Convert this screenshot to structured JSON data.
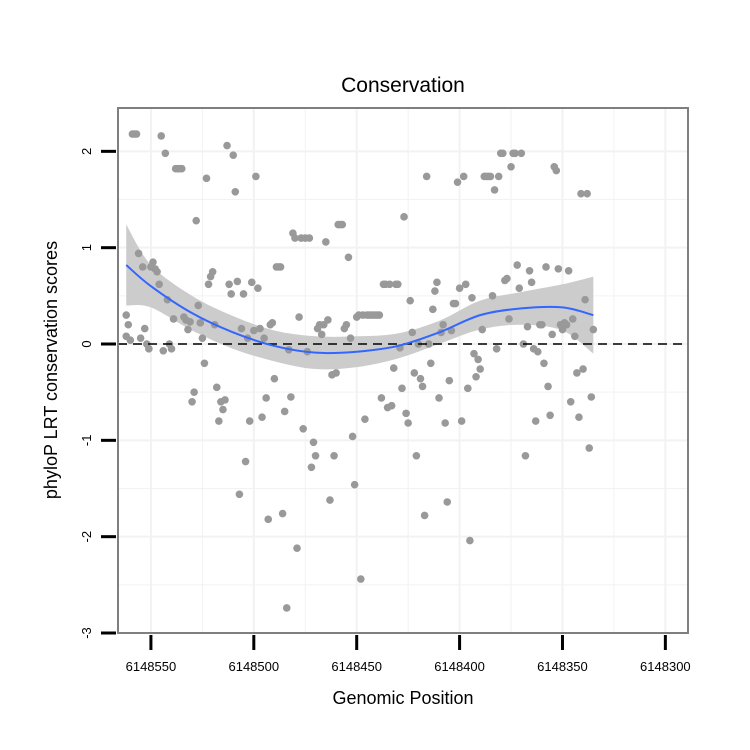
{
  "chart_data": {
    "type": "scatter",
    "title": "Conservation",
    "xlabel": "Genomic Position",
    "ylabel": "phyloP LRT conservation scores",
    "xlim": [
      6148566,
      6148289
    ],
    "ylim": [
      -3,
      2.45
    ],
    "x_reversed": true,
    "x_ticks": [
      6148550,
      6148500,
      6148450,
      6148400,
      6148350,
      6148300
    ],
    "x_tick_labels": [
      "6148550",
      "6148500",
      "6148450",
      "6148400",
      "6148350",
      "6148300"
    ],
    "y_ticks": [
      2,
      1,
      0,
      -1,
      -2,
      -3
    ],
    "y_tick_labels": [
      "2",
      "1",
      "0",
      "-1",
      "-2",
      "-3"
    ],
    "reference_line": {
      "y": 0,
      "style": "dashed"
    },
    "colors": {
      "points": "#999999",
      "smooth_line": "#3366FF",
      "confidence_band": "#cccccc",
      "panel_border": "#7f7f7f",
      "grid": "#f2f2f2"
    },
    "series": [
      {
        "name": "points",
        "values": [
          [
            6148562,
            0.3
          ],
          [
            6148562,
            0.08
          ],
          [
            6148561,
            0.2
          ],
          [
            6148560,
            0.04
          ],
          [
            6148559,
            2.18
          ],
          [
            6148558,
            2.18
          ],
          [
            6148557,
            2.18
          ],
          [
            6148556,
            0.94
          ],
          [
            6148555,
            0.06
          ],
          [
            6148554,
            0.8
          ],
          [
            6148553,
            0.16
          ],
          [
            6148552,
            0.0
          ],
          [
            6148551,
            -0.05
          ],
          [
            6148550,
            0.8
          ],
          [
            6148549,
            0.85
          ],
          [
            6148548,
            0.78
          ],
          [
            6148547,
            0.75
          ],
          [
            6148546,
            0.62
          ],
          [
            6148545,
            2.16
          ],
          [
            6148544,
            -0.07
          ],
          [
            6148543,
            1.98
          ],
          [
            6148542,
            0.46
          ],
          [
            6148541,
            0.0
          ],
          [
            6148540,
            -0.05
          ],
          [
            6148539,
            0.26
          ],
          [
            6148538,
            1.82
          ],
          [
            6148537,
            1.82
          ],
          [
            6148536,
            1.82
          ],
          [
            6148535,
            1.82
          ],
          [
            6148534,
            0.28
          ],
          [
            6148533,
            0.25
          ],
          [
            6148532,
            0.15
          ],
          [
            6148531,
            0.23
          ],
          [
            6148530,
            -0.6
          ],
          [
            6148529,
            -0.5
          ],
          [
            6148528,
            1.28
          ],
          [
            6148527,
            0.4
          ],
          [
            6148526,
            0.22
          ],
          [
            6148525,
            0.06
          ],
          [
            6148524,
            -0.2
          ],
          [
            6148523,
            1.72
          ],
          [
            6148522,
            0.62
          ],
          [
            6148521,
            0.7
          ],
          [
            6148520,
            0.75
          ],
          [
            6148519,
            0.2
          ],
          [
            6148518,
            -0.45
          ],
          [
            6148517,
            -0.8
          ],
          [
            6148516,
            -0.6
          ],
          [
            6148515,
            -0.68
          ],
          [
            6148514,
            -0.58
          ],
          [
            6148513,
            2.06
          ],
          [
            6148512,
            0.62
          ],
          [
            6148511,
            0.52
          ],
          [
            6148510,
            1.96
          ],
          [
            6148509,
            1.58
          ],
          [
            6148508,
            0.65
          ],
          [
            6148507,
            -1.56
          ],
          [
            6148506,
            0.16
          ],
          [
            6148505,
            0.52
          ],
          [
            6148504,
            -1.22
          ],
          [
            6148503,
            0.06
          ],
          [
            6148502,
            -0.8
          ],
          [
            6148501,
            0.64
          ],
          [
            6148500,
            0.14
          ],
          [
            6148499,
            1.74
          ],
          [
            6148498,
            0.58
          ],
          [
            6148497,
            0.16
          ],
          [
            6148496,
            -0.76
          ],
          [
            6148495,
            0.06
          ],
          [
            6148494,
            -0.56
          ],
          [
            6148493,
            -1.82
          ],
          [
            6148492,
            0.2
          ],
          [
            6148491,
            0.22
          ],
          [
            6148490,
            -0.36
          ],
          [
            6148489,
            0.8
          ],
          [
            6148488,
            0.8
          ],
          [
            6148487,
            0.8
          ],
          [
            6148486,
            -1.76
          ],
          [
            6148485,
            -0.7
          ],
          [
            6148484,
            -2.74
          ],
          [
            6148483,
            -0.06
          ],
          [
            6148482,
            -0.55
          ],
          [
            6148481,
            1.15
          ],
          [
            6148480,
            1.1
          ],
          [
            6148479,
            -2.12
          ],
          [
            6148478,
            0.28
          ],
          [
            6148477,
            1.1
          ],
          [
            6148476,
            -0.88
          ],
          [
            6148475,
            1.1
          ],
          [
            6148474,
            -0.08
          ],
          [
            6148473,
            1.1
          ],
          [
            6148472,
            -1.28
          ],
          [
            6148471,
            -1.02
          ],
          [
            6148470,
            -1.16
          ],
          [
            6148469,
            0.16
          ],
          [
            6148468,
            0.2
          ],
          [
            6148467,
            0.1
          ],
          [
            6148466,
            0.2
          ],
          [
            6148465,
            1.06
          ],
          [
            6148464,
            0.25
          ],
          [
            6148463,
            -1.62
          ],
          [
            6148462,
            -0.32
          ],
          [
            6148461,
            -1.16
          ],
          [
            6148460,
            -0.3
          ],
          [
            6148459,
            1.24
          ],
          [
            6148458,
            1.24
          ],
          [
            6148457,
            1.24
          ],
          [
            6148456,
            0.16
          ],
          [
            6148455,
            0.2
          ],
          [
            6148454,
            0.9
          ],
          [
            6148453,
            0.06
          ],
          [
            6148452,
            -0.96
          ],
          [
            6148451,
            -1.46
          ],
          [
            6148450,
            0.28
          ],
          [
            6148449,
            0.3
          ],
          [
            6148448,
            -2.44
          ],
          [
            6148447,
            0.3
          ],
          [
            6148446,
            -0.78
          ],
          [
            6148445,
            0.3
          ],
          [
            6148444,
            0.3
          ],
          [
            6148443,
            0.3
          ],
          [
            6148442,
            0.3
          ],
          [
            6148441,
            0.3
          ],
          [
            6148440,
            0.3
          ],
          [
            6148439,
            0.3
          ],
          [
            6148438,
            -0.56
          ],
          [
            6148437,
            0.62
          ],
          [
            6148436,
            0.62
          ],
          [
            6148435,
            -0.66
          ],
          [
            6148434,
            0.62
          ],
          [
            6148433,
            -0.64
          ],
          [
            6148432,
            -0.25
          ],
          [
            6148431,
            0.62
          ],
          [
            6148430,
            0.62
          ],
          [
            6148429,
            -0.04
          ],
          [
            6148428,
            -0.46
          ],
          [
            6148427,
            1.32
          ],
          [
            6148426,
            -0.72
          ],
          [
            6148425,
            -0.82
          ],
          [
            6148424,
            0.45
          ],
          [
            6148423,
            0.12
          ],
          [
            6148422,
            -0.3
          ],
          [
            6148421,
            -1.16
          ],
          [
            6148420,
            0.0
          ],
          [
            6148419,
            -0.36
          ],
          [
            6148418,
            -0.44
          ],
          [
            6148417,
            -1.78
          ],
          [
            6148416,
            1.74
          ],
          [
            6148415,
            0.0
          ],
          [
            6148414,
            -0.2
          ],
          [
            6148413,
            0.36
          ],
          [
            6148412,
            0.55
          ],
          [
            6148411,
            0.64
          ],
          [
            6148410,
            -0.56
          ],
          [
            6148409,
            0.12
          ],
          [
            6148408,
            0.2
          ],
          [
            6148407,
            -0.82
          ],
          [
            6148406,
            -1.64
          ],
          [
            6148405,
            -0.38
          ],
          [
            6148404,
            0.14
          ],
          [
            6148403,
            0.42
          ],
          [
            6148402,
            0.42
          ],
          [
            6148401,
            1.68
          ],
          [
            6148400,
            0.58
          ],
          [
            6148399,
            -0.8
          ],
          [
            6148398,
            1.74
          ],
          [
            6148397,
            0.62
          ],
          [
            6148396,
            -0.46
          ],
          [
            6148395,
            -2.04
          ],
          [
            6148394,
            0.48
          ],
          [
            6148393,
            -0.1
          ],
          [
            6148392,
            -0.34
          ],
          [
            6148391,
            -0.16
          ],
          [
            6148390,
            -0.26
          ],
          [
            6148389,
            0.15
          ],
          [
            6148388,
            1.74
          ],
          [
            6148387,
            1.74
          ],
          [
            6148386,
            1.74
          ],
          [
            6148385,
            1.74
          ],
          [
            6148384,
            0.5
          ],
          [
            6148383,
            1.6
          ],
          [
            6148382,
            -0.05
          ],
          [
            6148381,
            1.74
          ],
          [
            6148380,
            1.98
          ],
          [
            6148379,
            1.98
          ],
          [
            6148378,
            0.66
          ],
          [
            6148377,
            0.68
          ],
          [
            6148376,
            0.26
          ],
          [
            6148375,
            1.84
          ],
          [
            6148374,
            1.98
          ],
          [
            6148373,
            1.98
          ],
          [
            6148372,
            0.82
          ],
          [
            6148371,
            0.58
          ],
          [
            6148370,
            1.98
          ],
          [
            6148369,
            0.0
          ],
          [
            6148368,
            -1.16
          ],
          [
            6148367,
            0.18
          ],
          [
            6148366,
            0.76
          ],
          [
            6148365,
            0.64
          ],
          [
            6148364,
            -0.05
          ],
          [
            6148363,
            -0.8
          ],
          [
            6148362,
            -0.08
          ],
          [
            6148361,
            0.2
          ],
          [
            6148360,
            0.2
          ],
          [
            6148359,
            -0.2
          ],
          [
            6148358,
            0.8
          ],
          [
            6148357,
            -0.44
          ],
          [
            6148356,
            -0.74
          ],
          [
            6148355,
            0.1
          ],
          [
            6148354,
            1.84
          ],
          [
            6148353,
            1.8
          ],
          [
            6148352,
            0.78
          ],
          [
            6148351,
            0.2
          ],
          [
            6148350,
            0.15
          ],
          [
            6148349,
            0.22
          ],
          [
            6148348,
            0.2
          ],
          [
            6148347,
            0.76
          ],
          [
            6148346,
            -0.6
          ],
          [
            6148345,
            0.26
          ],
          [
            6148344,
            0.08
          ],
          [
            6148343,
            -0.3
          ],
          [
            6148342,
            -0.76
          ],
          [
            6148341,
            1.56
          ],
          [
            6148340,
            -0.26
          ],
          [
            6148339,
            0.46
          ],
          [
            6148338,
            1.56
          ],
          [
            6148337,
            -1.08
          ],
          [
            6148336,
            -0.55
          ],
          [
            6148335,
            0.15
          ]
        ]
      }
    ],
    "smooth": {
      "method": "loess",
      "x": [
        6148562,
        6148550,
        6148530,
        6148510,
        6148490,
        6148470,
        6148450,
        6148430,
        6148410,
        6148390,
        6148370,
        6148350,
        6148335
      ],
      "y": [
        0.82,
        0.6,
        0.32,
        0.12,
        -0.02,
        -0.09,
        -0.08,
        -0.02,
        0.12,
        0.3,
        0.37,
        0.38,
        0.3
      ],
      "lower": [
        0.4,
        0.38,
        0.14,
        -0.05,
        -0.18,
        -0.26,
        -0.24,
        -0.15,
        0.0,
        0.15,
        0.2,
        0.14,
        -0.1
      ],
      "upper": [
        1.24,
        0.82,
        0.5,
        0.29,
        0.14,
        0.08,
        0.08,
        0.11,
        0.24,
        0.45,
        0.54,
        0.62,
        0.7
      ]
    }
  }
}
